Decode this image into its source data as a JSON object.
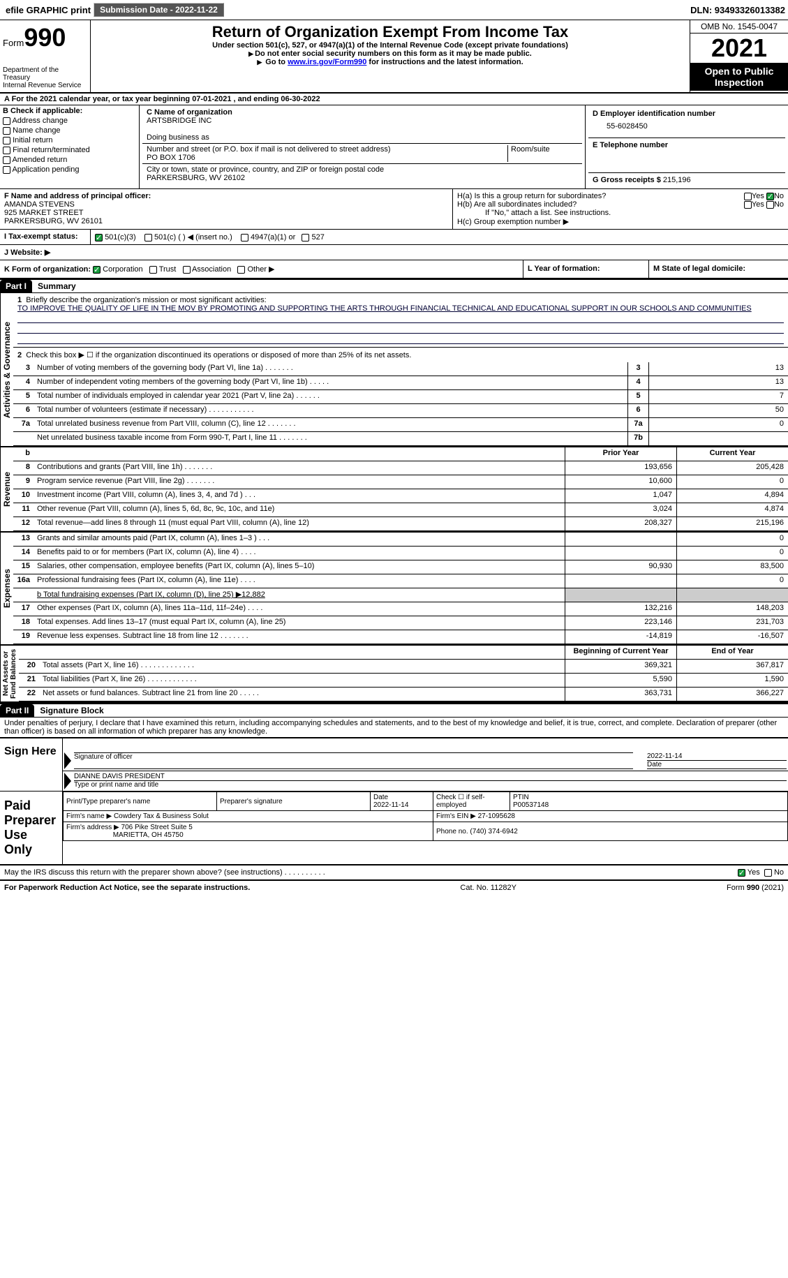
{
  "topbar": {
    "efile": "efile GRAPHIC print",
    "submission_label": "Submission Date - 2022-11-22",
    "dln": "DLN: 93493326013382"
  },
  "header": {
    "form_label": "Form",
    "form_number": "990",
    "title": "Return of Organization Exempt From Income Tax",
    "subtitle1": "Under section 501(c), 527, or 4947(a)(1) of the Internal Revenue Code (except private foundations)",
    "subtitle2": "Do not enter social security numbers on this form as it may be made public.",
    "subtitle3_pre": "Go to ",
    "subtitle3_link": "www.irs.gov/Form990",
    "subtitle3_post": " for instructions and the latest information.",
    "dept": "Department of the Treasury\nInternal Revenue Service",
    "omb": "OMB No. 1545-0047",
    "year": "2021",
    "inspection": "Open to Public Inspection"
  },
  "section_a": "A For the 2021 calendar year, or tax year beginning 07-01-2021      , and ending 06-30-2022",
  "section_b": {
    "label": "B Check if applicable:",
    "items": [
      "Address change",
      "Name change",
      "Initial return",
      "Final return/terminated",
      "Amended return",
      "Application pending"
    ]
  },
  "section_c": {
    "label": "C Name of organization",
    "name": "ARTSBRIDGE INC",
    "dba_label": "Doing business as",
    "addr_label": "Number and street (or P.O. box if mail is not delivered to street address)",
    "room_label": "Room/suite",
    "addr": "PO BOX 1706",
    "city_label": "City or town, state or province, country, and ZIP or foreign postal code",
    "city": "PARKERSBURG, WV  26102"
  },
  "section_d": {
    "label": "D Employer identification number",
    "ein": "55-6028450"
  },
  "section_e": {
    "label": "E Telephone number"
  },
  "section_g": {
    "label": "G Gross receipts $",
    "value": "215,196"
  },
  "section_f": {
    "label": "F Name and address of principal officer:",
    "name": "AMANDA STEVENS",
    "addr1": "925 MARKET STREET",
    "addr2": "PARKERSBURG, WV  26101"
  },
  "section_h": {
    "ha": "H(a)  Is this a group return for subordinates?",
    "hb": "H(b)  Are all subordinates included?",
    "hb_note": "If \"No,\" attach a list. See instructions.",
    "hc": "H(c)  Group exemption number ▶",
    "yes": "Yes",
    "no": "No"
  },
  "section_i": {
    "label": "I     Tax-exempt status:",
    "opts": [
      "501(c)(3)",
      "501(c) (   ) ◀ (insert no.)",
      "4947(a)(1) or",
      "527"
    ]
  },
  "section_j": {
    "label": "J    Website: ▶"
  },
  "section_k": {
    "label": "K Form of organization:",
    "opts": [
      "Corporation",
      "Trust",
      "Association",
      "Other ▶"
    ]
  },
  "section_l": {
    "label": "L Year of formation:"
  },
  "section_m": {
    "label": "M State of legal domicile:"
  },
  "part1": {
    "hdr": "Part I",
    "title": "Summary",
    "line1_label": "Briefly describe the organization's mission or most significant activities:",
    "mission": "TO IMPROVE THE QUALITY OF LIFE IN THE MOV BY PROMOTING AND SUPPORTING THE ARTS THROUGH FINANCIAL TECHNICAL AND EDUCATIONAL SUPPORT IN OUR SCHOOLS AND COMMUNITIES",
    "line2": "Check this box ▶ ☐  if the organization discontinued its operations or disposed of more than 25% of its net assets.",
    "lines_top": [
      {
        "n": "3",
        "desc": "Number of voting members of the governing body (Part VI, line 1a)   .    .    .    .    .    .    .",
        "box": "3",
        "val": "13"
      },
      {
        "n": "4",
        "desc": "Number of independent voting members of the governing body (Part VI, line 1b)    .    .    .    .    .",
        "box": "4",
        "val": "13"
      },
      {
        "n": "5",
        "desc": "Total number of individuals employed in calendar year 2021 (Part V, line 2a)    .    .    .    .    .    .",
        "box": "5",
        "val": "7"
      },
      {
        "n": "6",
        "desc": "Total number of volunteers (estimate if necessary)      .    .    .    .    .    .    .    .    .    .    .",
        "box": "6",
        "val": "50"
      },
      {
        "n": "7a",
        "desc": "Total unrelated business revenue from Part VIII, column (C), line 12      .    .    .    .    .    .    .",
        "box": "7a",
        "val": "0"
      },
      {
        "n": "",
        "desc": "Net unrelated business taxable income from Form 990-T, Part I, line 11    .    .    .    .    .    .    .",
        "box": "7b",
        "val": ""
      }
    ],
    "col_hdr1": "Prior Year",
    "col_hdr2": "Current Year",
    "revenue": [
      {
        "n": "8",
        "desc": "Contributions and grants (Part VIII, line 1h)     .    .    .    .    .    .    .",
        "v1": "193,656",
        "v2": "205,428"
      },
      {
        "n": "9",
        "desc": "Program service revenue (Part VIII, line 2g)     .    .    .    .    .    .    .",
        "v1": "10,600",
        "v2": "0"
      },
      {
        "n": "10",
        "desc": "Investment income (Part VIII, column (A), lines 3, 4, and 7d )     .    .    .",
        "v1": "1,047",
        "v2": "4,894"
      },
      {
        "n": "11",
        "desc": "Other revenue (Part VIII, column (A), lines 5, 6d, 8c, 9c, 10c, and 11e)",
        "v1": "3,024",
        "v2": "4,874"
      },
      {
        "n": "12",
        "desc": "Total revenue—add lines 8 through 11 (must equal Part VIII, column (A), line 12)",
        "v1": "208,327",
        "v2": "215,196"
      }
    ],
    "expenses": [
      {
        "n": "13",
        "desc": "Grants and similar amounts paid (Part IX, column (A), lines 1–3 )    .    .    .",
        "v1": "",
        "v2": "0"
      },
      {
        "n": "14",
        "desc": "Benefits paid to or for members (Part IX, column (A), line 4)    .    .    .    .",
        "v1": "",
        "v2": "0"
      },
      {
        "n": "15",
        "desc": "Salaries, other compensation, employee benefits (Part IX, column (A), lines 5–10)",
        "v1": "90,930",
        "v2": "83,500"
      },
      {
        "n": "16a",
        "desc": "Professional fundraising fees (Part IX, column (A), line 11e)    .    .    .    .",
        "v1": "",
        "v2": "0"
      }
    ],
    "line16b": "b   Total fundraising expenses (Part IX, column (D), line 25) ▶12,882",
    "expenses2": [
      {
        "n": "17",
        "desc": "Other expenses (Part IX, column (A), lines 11a–11d, 11f–24e)    .    .    .    .",
        "v1": "132,216",
        "v2": "148,203"
      },
      {
        "n": "18",
        "desc": "Total expenses. Add lines 13–17 (must equal Part IX, column (A), line 25)",
        "v1": "223,146",
        "v2": "231,703"
      },
      {
        "n": "19",
        "desc": "Revenue less expenses. Subtract line 18 from line 12  .    .    .    .    .    .    .",
        "v1": "-14,819",
        "v2": "-16,507"
      }
    ],
    "col_hdr3": "Beginning of Current Year",
    "col_hdr4": "End of Year",
    "netassets": [
      {
        "n": "20",
        "desc": "Total assets (Part X, line 16)  .    .    .    .    .    .    .    .    .    .    .    .    .",
        "v1": "369,321",
        "v2": "367,817"
      },
      {
        "n": "21",
        "desc": "Total liabilities (Part X, line 26)  .    .    .    .    .    .    .    .    .    .    .    .",
        "v1": "5,590",
        "v2": "1,590"
      },
      {
        "n": "22",
        "desc": "Net assets or fund balances. Subtract line 21 from line 20    .    .    .    .    .",
        "v1": "363,731",
        "v2": "366,227"
      }
    ]
  },
  "part2": {
    "hdr": "Part II",
    "title": "Signature Block",
    "decl": "Under penalties of perjury, I declare that I have examined this return, including accompanying schedules and statements, and to the best of my knowledge and belief, it is true, correct, and complete. Declaration of preparer (other than officer) is based on all information of which preparer has any knowledge."
  },
  "sign": {
    "here": "Sign Here",
    "sig_officer": "Signature of officer",
    "date": "2022-11-14",
    "date_label": "Date",
    "name": "DIANNE DAVIS PRESIDENT",
    "name_label": "Type or print name and title"
  },
  "prep": {
    "label": "Paid Preparer Use Only",
    "print_label": "Print/Type preparer's name",
    "sig_label": "Preparer's signature",
    "date_label": "Date",
    "date": "2022-11-14",
    "check_label": "Check ☐ if self-employed",
    "ptin_label": "PTIN",
    "ptin": "P00537148",
    "firm_name_label": "Firm's name     ▶",
    "firm_name": "Cowdery Tax & Business Solut",
    "firm_ein_label": "Firm's EIN ▶",
    "firm_ein": "27-1095628",
    "firm_addr_label": "Firm's address ▶",
    "firm_addr1": "706 Pike Street Suite 5",
    "firm_addr2": "MARIETTA, OH  45750",
    "phone_label": "Phone no.",
    "phone": "(740) 374-6942"
  },
  "discuss": {
    "text": "May the IRS discuss this return with the preparer shown above? (see instructions)    .    .    .    .    .    .    .    .    .    .",
    "yes": "Yes",
    "no": "No"
  },
  "footer": {
    "left": "For Paperwork Reduction Act Notice, see the separate instructions.",
    "mid": "Cat. No. 11282Y",
    "right": "Form 990 (2021)"
  },
  "vlabels": {
    "activities": "Activities & Governance",
    "revenue": "Revenue",
    "expenses": "Expenses",
    "netassets": "Net Assets or\nFund Balances"
  }
}
